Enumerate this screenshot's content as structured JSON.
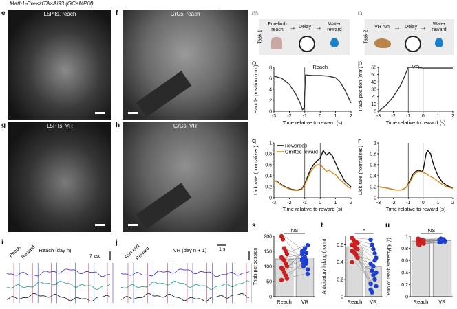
{
  "header": "Math1-Cre×ztTA×Ai93 (GCaMP6f)",
  "panels": {
    "e": {
      "letter": "e",
      "title": "L5PTs, reach"
    },
    "f": {
      "letter": "f",
      "title": "GrCs, reach"
    },
    "g": {
      "letter": "g",
      "title": "L5PTs, VR"
    },
    "h": {
      "letter": "h",
      "title": "GrCs, VR"
    },
    "i": {
      "letter": "i",
      "title": "Reach (day n)",
      "reach": "Reach",
      "reward": "Reward",
      "scale": "7 zsc"
    },
    "j": {
      "letter": "j",
      "title": "VR (day n + 1)",
      "run_end": "Run end",
      "reward": "Reward",
      "time_scale": "1 s"
    },
    "m": {
      "letter": "m",
      "task": "Task 1",
      "step1": "Forelimb reach",
      "step2": "Delay",
      "step3": "Water reward"
    },
    "n": {
      "letter": "n",
      "task": "Task 2",
      "step1": "VR run",
      "step2": "Delay",
      "step3": "Water reward"
    },
    "o": {
      "letter": "o"
    },
    "p": {
      "letter": "p"
    },
    "q": {
      "letter": "q"
    },
    "r": {
      "letter": "r"
    },
    "s": {
      "letter": "s"
    },
    "t": {
      "letter": "t"
    },
    "u": {
      "letter": "u"
    }
  },
  "chart_data": [
    {
      "id": "o",
      "type": "line",
      "title": "Reach",
      "xlabel": "Time relative to reward (s)",
      "ylabel": "Handle position (mm)",
      "xlim": [
        -3,
        2
      ],
      "ylim": [
        0,
        8
      ],
      "xticks": [
        -3,
        -2,
        -1,
        0,
        1,
        2
      ],
      "yticks": [
        0,
        2,
        4,
        6,
        8
      ],
      "vlines": [
        -1
      ],
      "series": [
        {
          "color": "#333333",
          "x": [
            -3,
            -2.5,
            -2,
            -1.6,
            -1.3,
            -1.15,
            -1.05,
            -0.95,
            -0.5,
            0,
            0.5,
            1,
            1.3,
            1.6,
            1.8,
            2
          ],
          "y": [
            6.4,
            6,
            4.9,
            3.2,
            1.5,
            0.3,
            0.5,
            6.6,
            6.5,
            6.5,
            6.4,
            6.1,
            5.3,
            3.9,
            2.7,
            1.5
          ]
        }
      ]
    },
    {
      "id": "p",
      "type": "line",
      "title": "VR",
      "xlabel": "Time relative to reward (s)",
      "ylabel": "Track position (mm)",
      "xlim": [
        -3,
        2
      ],
      "ylim": [
        0,
        60
      ],
      "xticks": [
        -3,
        -2,
        -1,
        0,
        1,
        2
      ],
      "yticks": [
        0,
        10,
        20,
        30,
        40,
        50,
        60
      ],
      "vlines": [
        -1,
        0
      ],
      "series": [
        {
          "color": "#333333",
          "x": [
            -3,
            -2.5,
            -2,
            -1.5,
            -1.2,
            -1,
            -0.5,
            0,
            0.5,
            1,
            1.5,
            2
          ],
          "y": [
            0,
            8,
            20,
            36,
            50,
            60,
            60,
            59,
            59,
            59,
            59,
            59
          ]
        }
      ]
    },
    {
      "id": "q",
      "type": "line",
      "xlabel": "Time relative to reward (s)",
      "ylabel": "Lick rate (normalized)",
      "xlim": [
        -3,
        2
      ],
      "ylim": [
        0,
        1
      ],
      "xticks": [
        -3,
        -2,
        -1,
        0,
        1,
        2
      ],
      "yticks": [
        0,
        0.2,
        0.4,
        0.6,
        0.8,
        1.0
      ],
      "vlines": [
        -1,
        0
      ],
      "legend": {
        "position": "top-left"
      },
      "series": [
        {
          "name": "Rewarded",
          "color": "#111111",
          "x": [
            -3,
            -2.7,
            -2.4,
            -2.1,
            -1.8,
            -1.5,
            -1.2,
            -1,
            -0.8,
            -0.6,
            -0.4,
            -0.2,
            0,
            0.2,
            0.4,
            0.6,
            0.8,
            1,
            1.2,
            1.4,
            1.6,
            1.8,
            2
          ],
          "y": [
            0.32,
            0.28,
            0.22,
            0.18,
            0.15,
            0.14,
            0.16,
            0.25,
            0.4,
            0.53,
            0.61,
            0.67,
            0.72,
            0.86,
            0.78,
            0.82,
            0.76,
            0.63,
            0.5,
            0.4,
            0.3,
            0.25,
            0.2
          ]
        },
        {
          "name": "Omitted reward",
          "color": "#d98a1c",
          "x": [
            -3,
            -2.7,
            -2.4,
            -2.1,
            -1.8,
            -1.5,
            -1.2,
            -1,
            -0.8,
            -0.6,
            -0.4,
            -0.2,
            0,
            0.2,
            0.4,
            0.6,
            0.8,
            1,
            1.2,
            1.4,
            1.6,
            1.8,
            2
          ],
          "y": [
            0.32,
            0.27,
            0.21,
            0.17,
            0.14,
            0.13,
            0.15,
            0.23,
            0.36,
            0.48,
            0.56,
            0.6,
            0.6,
            0.55,
            0.48,
            0.5,
            0.45,
            0.42,
            0.35,
            0.3,
            0.25,
            0.2,
            0.17
          ]
        }
      ]
    },
    {
      "id": "r",
      "type": "line",
      "xlabel": "Time relative to reward (s)",
      "ylabel": "Lick rate (normalized)",
      "xlim": [
        -3,
        2
      ],
      "ylim": [
        0,
        1
      ],
      "xticks": [
        -3,
        -2,
        -1,
        0,
        1,
        2
      ],
      "yticks": [
        0,
        0.2,
        0.4,
        0.6,
        0.8,
        1.0
      ],
      "vlines": [
        -1,
        0
      ],
      "series": [
        {
          "name": "Rewarded",
          "color": "#111111",
          "x": [
            -3,
            -2.5,
            -2,
            -1.8,
            -1.5,
            -1.3,
            -1.1,
            -0.9,
            -0.7,
            -0.5,
            -0.3,
            -0.1,
            0,
            0.1,
            0.2,
            0.3,
            0.5,
            0.7,
            1,
            1.3,
            1.6,
            2
          ],
          "y": [
            0.2,
            0.18,
            0.15,
            0.14,
            0.14,
            0.16,
            0.2,
            0.3,
            0.42,
            0.48,
            0.5,
            0.48,
            0.5,
            0.65,
            0.8,
            0.86,
            0.8,
            0.6,
            0.4,
            0.28,
            0.22,
            0.18
          ]
        },
        {
          "name": "Omitted reward",
          "color": "#d98a1c",
          "x": [
            -3,
            -2.5,
            -2,
            -1.8,
            -1.5,
            -1.3,
            -1.1,
            -0.9,
            -0.7,
            -0.5,
            -0.3,
            -0.1,
            0,
            0.2,
            0.4,
            0.7,
            1,
            1.3,
            1.6,
            2
          ],
          "y": [
            0.2,
            0.18,
            0.15,
            0.14,
            0.14,
            0.16,
            0.2,
            0.28,
            0.38,
            0.45,
            0.48,
            0.47,
            0.46,
            0.44,
            0.4,
            0.36,
            0.3,
            0.24,
            0.2,
            0.17
          ]
        }
      ]
    },
    {
      "id": "s",
      "type": "bar",
      "title": "NS",
      "categories": [
        "Reach",
        "VR"
      ],
      "ylabel": "Trials per session",
      "ylim": [
        0,
        200
      ],
      "yticks": [
        0,
        50,
        100,
        150,
        200
      ],
      "bars": [
        125,
        128
      ],
      "colors": [
        "#cc1f1f",
        "#1f3fcc"
      ],
      "paired": [
        [
          200,
          150
        ],
        [
          190,
          110
        ],
        [
          160,
          130
        ],
        [
          150,
          120
        ],
        [
          140,
          170
        ],
        [
          130,
          140
        ],
        [
          125,
          100
        ],
        [
          120,
          130
        ],
        [
          110,
          145
        ],
        [
          100,
          90
        ],
        [
          95,
          125
        ],
        [
          90,
          150
        ],
        [
          80,
          160
        ],
        [
          70,
          110
        ],
        [
          60,
          75
        ],
        [
          55,
          120
        ]
      ]
    },
    {
      "id": "t",
      "type": "bar",
      "title": "*",
      "categories": [
        "Reach",
        "VR"
      ],
      "ylabel": "Anticipatory licking (norm)",
      "ylim": [
        0,
        0.7
      ],
      "yticks": [
        0,
        0.2,
        0.4,
        0.6
      ],
      "bars": [
        0.58,
        0.35
      ],
      "colors": [
        "#cc1f1f",
        "#1f3fcc"
      ],
      "paired": [
        [
          0.68,
          0.66
        ],
        [
          0.66,
          0.6
        ],
        [
          0.64,
          0.55
        ],
        [
          0.63,
          0.5
        ],
        [
          0.62,
          0.45
        ],
        [
          0.6,
          0.38
        ],
        [
          0.6,
          0.3
        ],
        [
          0.58,
          0.25
        ],
        [
          0.56,
          0.2
        ],
        [
          0.55,
          0.12
        ],
        [
          0.53,
          0.08
        ],
        [
          0.52,
          0.05
        ],
        [
          0.5,
          0.35
        ],
        [
          0.48,
          0.42
        ],
        [
          0.45,
          0.28
        ],
        [
          0.4,
          0.15
        ]
      ]
    },
    {
      "id": "u",
      "type": "bar",
      "title": "NS",
      "categories": [
        "Reach",
        "VR"
      ],
      "ylabel": "Run or reach stereotypy (r)",
      "ylim": [
        0,
        1
      ],
      "yticks": [
        0,
        0.2,
        0.4,
        0.6,
        0.8,
        1.0
      ],
      "bars": [
        0.92,
        0.93
      ],
      "colors": [
        "#cc1f1f",
        "#1f3fcc"
      ],
      "paired": [
        [
          0.96,
          0.94
        ],
        [
          0.95,
          0.96
        ],
        [
          0.94,
          0.95
        ],
        [
          0.93,
          0.93
        ],
        [
          0.93,
          0.92
        ],
        [
          0.92,
          0.94
        ],
        [
          0.91,
          0.9
        ],
        [
          0.9,
          0.93
        ],
        [
          0.89,
          0.95
        ],
        [
          0.88,
          0.91
        ],
        [
          0.87,
          0.9
        ],
        [
          0.86,
          0.92
        ]
      ]
    }
  ]
}
